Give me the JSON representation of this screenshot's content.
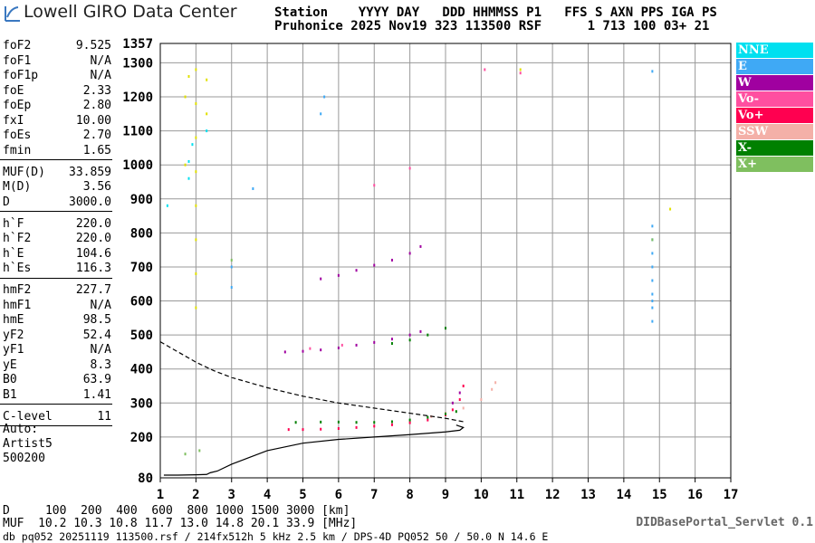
{
  "header": {
    "logo": "Lowell GIRO Data Center",
    "line1": "Station    YYYY DAY   DDD HHMMSS P1   FFS S AXN PPS IGA PS",
    "line2": "Pruhonice 2025 Nov19 323 113500 RSF      1 713 100 03+ 21"
  },
  "parameters": [
    [
      {
        "name": "foF2",
        "value": "9.525"
      },
      {
        "name": "foF1",
        "value": "N/A"
      },
      {
        "name": "foF1p",
        "value": "N/A"
      },
      {
        "name": "foE",
        "value": "2.33"
      },
      {
        "name": "foEp",
        "value": "2.80"
      },
      {
        "name": "fxI",
        "value": "10.00"
      },
      {
        "name": "foEs",
        "value": "2.70"
      },
      {
        "name": "fmin",
        "value": "1.65"
      }
    ],
    [
      {
        "name": "MUF(D)",
        "value": "33.859"
      },
      {
        "name": "M(D)",
        "value": "3.56"
      },
      {
        "name": "D",
        "value": "3000.0"
      }
    ],
    [
      {
        "name": "h`F",
        "value": "220.0"
      },
      {
        "name": "h`F2",
        "value": "220.0"
      },
      {
        "name": "h`E",
        "value": "104.6"
      },
      {
        "name": "h`Es",
        "value": "116.3"
      }
    ],
    [
      {
        "name": "hmF2",
        "value": "227.7"
      },
      {
        "name": "hmF1",
        "value": "N/A"
      },
      {
        "name": "hmE",
        "value": "98.5"
      },
      {
        "name": "yF2",
        "value": "52.4"
      },
      {
        "name": "yF1",
        "value": "N/A"
      },
      {
        "name": "yE",
        "value": "8.3"
      },
      {
        "name": "B0",
        "value": "63.9"
      },
      {
        "name": "B1",
        "value": "1.41"
      }
    ],
    [
      {
        "name": "C-level",
        "value": "11"
      }
    ]
  ],
  "autoscaling": [
    "Auto:",
    "Artist5",
    "500200"
  ],
  "chart_data": {
    "type": "scatter",
    "xlim": [
      1,
      17
    ],
    "ylim": [
      80,
      1357
    ],
    "xticks": [
      1,
      2,
      3,
      4,
      5,
      6,
      7,
      8,
      9,
      10,
      11,
      12,
      13,
      14,
      15,
      16,
      17
    ],
    "yticks": [
      80,
      200,
      300,
      400,
      500,
      600,
      700,
      800,
      900,
      1000,
      1100,
      1200,
      1300,
      1357
    ],
    "grid": true,
    "series": [
      {
        "name": "NNE",
        "color": "#00e0f0",
        "x": [
          1.8,
          1.8,
          1.9,
          2.3,
          1.2
        ],
        "y": [
          960,
          1010,
          1060,
          1100,
          880
        ]
      },
      {
        "name": "E",
        "color": "#3fa9f5",
        "x": [
          14.8,
          14.8,
          14.8,
          14.8,
          14.8,
          14.8,
          14.8,
          14.8,
          14.8,
          3.0,
          3.0,
          3.6,
          5.5,
          5.6,
          14.8
        ],
        "y": [
          540,
          580,
          620,
          660,
          700,
          740,
          780,
          820,
          600,
          640,
          700,
          930,
          1150,
          1200,
          1275
        ]
      },
      {
        "name": "W",
        "color": "#a000a0",
        "x": [
          4.5,
          5.0,
          5.5,
          6.0,
          6.5,
          7.0,
          7.5,
          8.0,
          8.3,
          5.5,
          6.0,
          6.5,
          7.0,
          7.5,
          8.0,
          8.3,
          9.2,
          9.4
        ],
        "y": [
          450,
          452,
          456,
          462,
          470,
          478,
          488,
          500,
          510,
          665,
          675,
          690,
          705,
          720,
          740,
          760,
          300,
          330
        ]
      },
      {
        "name": "Vo-",
        "color": "#ff4fa0",
        "x": [
          7.0,
          8.0,
          10.1,
          11.1,
          5.2,
          6.1
        ],
        "y": [
          940,
          990,
          1280,
          1270,
          460,
          470
        ]
      },
      {
        "name": "Vo+",
        "color": "#ff0050",
        "x": [
          4.6,
          5.0,
          5.5,
          6.0,
          6.5,
          7.0,
          7.5,
          8.0,
          8.5,
          9.0,
          9.2,
          9.4,
          9.5
        ],
        "y": [
          222,
          222,
          223,
          225,
          228,
          232,
          236,
          242,
          250,
          265,
          280,
          310,
          350
        ]
      },
      {
        "name": "SSW",
        "color": "#f4b0a8",
        "x": [
          8.6,
          9.0,
          9.5,
          10.0,
          10.3,
          10.4
        ],
        "y": [
          260,
          270,
          285,
          310,
          340,
          360
        ]
      },
      {
        "name": "X-",
        "color": "#008000",
        "x": [
          4.8,
          5.5,
          6.0,
          6.5,
          7.0,
          7.5,
          8.0,
          8.5,
          9.0,
          9.3,
          7.5,
          8.0,
          8.5,
          9.0
        ],
        "y": [
          243,
          244,
          244,
          243,
          243,
          245,
          250,
          258,
          268,
          275,
          475,
          485,
          500,
          520
        ]
      },
      {
        "name": "X+",
        "color": "#7fbf5f",
        "x": [
          1.7,
          2.1,
          14.8,
          3.0
        ],
        "y": [
          150,
          160,
          780,
          720
        ]
      },
      {
        "color": "#e0e000",
        "x": [
          2.0,
          2.0,
          2.0,
          2.0,
          2.0,
          2.0,
          2.0,
          2.0,
          1.7,
          1.7,
          1.8,
          2.3,
          2.3,
          11.1,
          15.3
        ],
        "y": [
          580,
          680,
          780,
          880,
          980,
          1080,
          1180,
          1280,
          1000,
          1200,
          1260,
          1150,
          1250,
          1280,
          870
        ]
      }
    ],
    "lines": [
      {
        "style": "solid",
        "x": [
          1.1,
          1.5,
          2.0,
          2.3,
          2.4,
          2.6,
          3.0,
          3.5,
          4.0,
          5.0,
          6.0,
          7.0,
          8.0,
          9.0,
          9.4,
          9.5,
          9.3
        ],
        "y": [
          88,
          88,
          89,
          90,
          95,
          100,
          120,
          140,
          160,
          182,
          193,
          200,
          207,
          215,
          220,
          228,
          235
        ]
      },
      {
        "style": "dashed",
        "x": [
          1.0,
          1.5,
          2.0,
          2.5,
          3.0,
          4.0,
          5.0,
          6.0,
          7.0,
          8.0,
          9.0,
          9.5
        ],
        "y": [
          480,
          450,
          420,
          395,
          375,
          345,
          320,
          300,
          285,
          270,
          255,
          245
        ]
      }
    ]
  },
  "muf_table": [
    {
      "label": "D",
      "cells": [
        "100",
        "200",
        "400",
        "600",
        "800",
        "1000",
        "1500",
        "3000"
      ],
      "unit": "[km]"
    },
    {
      "label": "MUF",
      "cells": [
        "10.2",
        "10.3",
        "10.8",
        "11.7",
        "13.0",
        "14.8",
        "20.1",
        "33.9"
      ],
      "unit": "[MHz]"
    }
  ],
  "servlet": "DIDBasePortal_Servlet 0.1",
  "footer": "db pq052 20251119 113500.rsf / 214fx512h 5 kHz 2.5 km / DPS-4D PQ052 50 / 50.0 N 14.6 E"
}
